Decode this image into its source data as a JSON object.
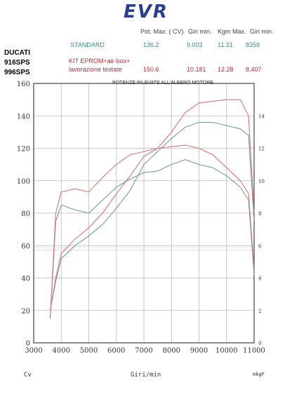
{
  "logo": "EVR",
  "headers": {
    "pot_max": "Pot. Max. ( CV)",
    "giri1": "Giri min.",
    "kgm_max": "Kgm Max.",
    "giri2": "Giri min."
  },
  "bike": {
    "line1": "DUCATI",
    "line2": "916SPS",
    "line3": "996SPS"
  },
  "rows": {
    "standard": {
      "label": "STANDARD",
      "pot": "136.2",
      "giri1": "9.003",
      "kgm": "11.31",
      "giri2": "8358"
    },
    "kit": {
      "label_line1": "KIT EPROM+air-box+",
      "label_line2": "lavorazione testate",
      "pot": "150.6",
      "giri1": "10.181",
      "kgm": "12.28",
      "giri2": "8.407"
    }
  },
  "footer": {
    "left": "Cv",
    "center": "Giri/min",
    "right": "mkgF"
  },
  "colors": {
    "standard": "#6f9e96",
    "kit": "#d87575",
    "frame": "#444444",
    "grid": "#b9b9b9"
  },
  "chart_data": {
    "type": "line",
    "title": "POTENZE RILEVATE ALL'ALBERO MOTORE",
    "xlabel": "Giri/min",
    "ylabel": "Cv",
    "y2label": "mkgF",
    "xlim": [
      3000,
      11000
    ],
    "ylim": [
      0,
      160
    ],
    "y2lim": [
      0,
      16
    ],
    "x_ticks": [
      3000,
      4000,
      5000,
      6000,
      7000,
      8000,
      9000,
      10000,
      11000
    ],
    "y_ticks": [
      0,
      20,
      40,
      60,
      80,
      100,
      120,
      140,
      160
    ],
    "y2_ticks": [
      0,
      2,
      4,
      6,
      8,
      10,
      12,
      14
    ],
    "grid": true,
    "series": [
      {
        "name": "STANDARD",
        "kind": "power",
        "axis": "left",
        "x": [
          3600,
          3800,
          4000,
          4500,
          5000,
          5500,
          6000,
          6500,
          7000,
          7500,
          8000,
          8500,
          9000,
          9500,
          10000,
          10500,
          10800,
          11000
        ],
        "y": [
          20,
          38,
          52,
          60,
          66,
          73,
          83,
          94,
          110,
          118,
          126,
          133,
          136,
          136,
          134,
          132,
          128,
          75
        ]
      },
      {
        "name": "KIT EPROM+air-box+ lavorazione testate",
        "kind": "power",
        "axis": "left",
        "x": [
          3600,
          3800,
          4000,
          4500,
          5000,
          5500,
          6000,
          6500,
          7000,
          7500,
          8000,
          8500,
          9000,
          9500,
          10000,
          10500,
          10800,
          11000
        ],
        "y": [
          20,
          40,
          55,
          64,
          71,
          80,
          92,
          103,
          115,
          120,
          130,
          142,
          148,
          149,
          150,
          150,
          140,
          80
        ]
      },
      {
        "name": "STANDARD",
        "kind": "torque",
        "axis": "right",
        "x": [
          3600,
          3800,
          4000,
          4500,
          5000,
          5500,
          6000,
          6500,
          7000,
          7500,
          8000,
          8500,
          9000,
          9500,
          10000,
          10500,
          10800,
          11000
        ],
        "y": [
          1.5,
          7.5,
          8.5,
          8.2,
          8.0,
          8.8,
          9.6,
          10.1,
          10.5,
          10.6,
          11.0,
          11.3,
          11.0,
          10.8,
          10.3,
          9.6,
          8.8,
          4.2
        ]
      },
      {
        "name": "KIT EPROM+air-box+ lavorazione testate",
        "kind": "torque",
        "axis": "right",
        "x": [
          3600,
          3800,
          4000,
          4500,
          5000,
          5500,
          6000,
          6500,
          7000,
          7500,
          8000,
          8500,
          9000,
          9500,
          10000,
          10500,
          10800,
          11000
        ],
        "y": [
          1.5,
          8.0,
          9.3,
          9.5,
          9.3,
          10.2,
          11.0,
          11.6,
          11.8,
          12.0,
          12.1,
          12.2,
          12.0,
          11.6,
          10.8,
          10.0,
          9.2,
          4.5
        ]
      }
    ]
  }
}
